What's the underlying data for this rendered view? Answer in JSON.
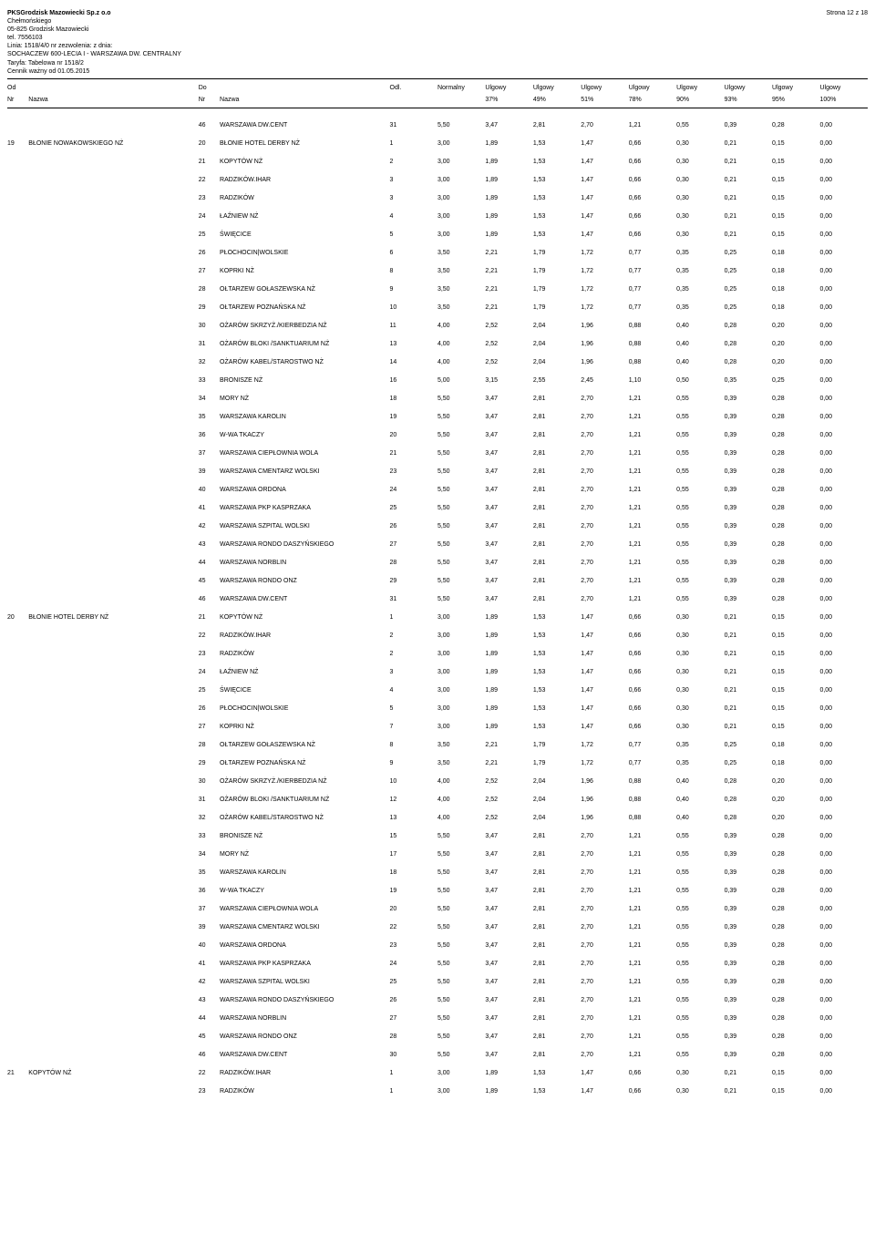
{
  "page_info": {
    "company": "PKSGrodzisk Mazowiecki Sp.z o.o",
    "addr1": "Chełmońskiego",
    "addr2": "05-825 Grodzisk Mazowiecki",
    "tel": "tel. 7556103",
    "linia": "Linia: 1518/4/0 nr zezwolenia:  z dnia:",
    "route": "SOCHACZEW 600-LECIA I - WARSZAWA DW. CENTRALNY",
    "taryfa": "Taryfa: Tabelowa nr 1518/2",
    "cennik": "Cennik ważny od 01.05.2015",
    "page_no": "Strona 12 z 18"
  },
  "headers": {
    "od": "Od",
    "do": "Do",
    "odl": "Odl.",
    "norm": "Normalny",
    "ulg": "Ulgowy",
    "nr": "Nr",
    "nazwa": "Nazwa",
    "pcts": [
      "37%",
      "49%",
      "51%",
      "78%",
      "90%",
      "93%",
      "95%",
      "100%"
    ]
  },
  "price_rows": {
    "p300": [
      "3,00",
      "1,89",
      "1,53",
      "1,47",
      "0,66",
      "0,30",
      "0,21",
      "0,15",
      "0,00"
    ],
    "p350": [
      "3,50",
      "2,21",
      "1,79",
      "1,72",
      "0,77",
      "0,35",
      "0,25",
      "0,18",
      "0,00"
    ],
    "p400": [
      "4,00",
      "2,52",
      "2,04",
      "1,96",
      "0,88",
      "0,40",
      "0,28",
      "0,20",
      "0,00"
    ],
    "p500": [
      "5,00",
      "3,15",
      "2,55",
      "2,45",
      "1,10",
      "0,50",
      "0,35",
      "0,25",
      "0,00"
    ],
    "p550": [
      "5,50",
      "3,47",
      "2,81",
      "2,70",
      "1,21",
      "0,55",
      "0,39",
      "0,28",
      "0,00"
    ]
  },
  "rows": [
    {
      "od_nr": "",
      "od_name": "",
      "do_nr": "46",
      "do_name": "WARSZAWA DW.CENT",
      "odl": "31",
      "p": "p550"
    },
    {
      "od_nr": "19",
      "od_name": "BŁONIE NOWAKOWSKIEGO  NŻ",
      "do_nr": "20",
      "do_name": "BŁONIE HOTEL DERBY  NŻ",
      "odl": "1",
      "p": "p300"
    },
    {
      "od_nr": "",
      "od_name": "",
      "do_nr": "21",
      "do_name": "KOPYTÓW  NŻ",
      "odl": "2",
      "p": "p300"
    },
    {
      "od_nr": "",
      "od_name": "",
      "do_nr": "22",
      "do_name": "RADZIKÓW.IHAR",
      "odl": "3",
      "p": "p300"
    },
    {
      "od_nr": "",
      "od_name": "",
      "do_nr": "23",
      "do_name": "RADZIKÓW",
      "odl": "3",
      "p": "p300"
    },
    {
      "od_nr": "",
      "od_name": "",
      "do_nr": "24",
      "do_name": "ŁAŹNIEW NŻ",
      "odl": "4",
      "p": "p300"
    },
    {
      "od_nr": "",
      "od_name": "",
      "do_nr": "25",
      "do_name": "ŚWIĘCICE",
      "odl": "5",
      "p": "p300"
    },
    {
      "od_nr": "",
      "od_name": "",
      "do_nr": "26",
      "do_name": "PŁOCHOCIN|WOLSKIE",
      "odl": "6",
      "p": "p350"
    },
    {
      "od_nr": "",
      "od_name": "",
      "do_nr": "27",
      "do_name": "KOPRKI NŻ",
      "odl": "8",
      "p": "p350"
    },
    {
      "od_nr": "",
      "od_name": "",
      "do_nr": "28",
      "do_name": "OŁTARZEW GOŁASZEWSKA NŻ",
      "odl": "9",
      "p": "p350"
    },
    {
      "od_nr": "",
      "od_name": "",
      "do_nr": "29",
      "do_name": "OŁTARZEW POZNAŃSKA  NŻ",
      "odl": "10",
      "p": "p350"
    },
    {
      "od_nr": "",
      "od_name": "",
      "do_nr": "30",
      "do_name": "OŻARÓW SKRZYŻ./KIERBEDZIA  NŻ",
      "odl": "11",
      "p": "p400"
    },
    {
      "od_nr": "",
      "od_name": "",
      "do_nr": "31",
      "do_name": "OŻARÓW BLOKI /SANKTUARIUM NŻ",
      "odl": "13",
      "p": "p400"
    },
    {
      "od_nr": "",
      "od_name": "",
      "do_nr": "32",
      "do_name": "OŻARÓW KABEL/STAROSTWO  NŻ",
      "odl": "14",
      "p": "p400"
    },
    {
      "od_nr": "",
      "od_name": "",
      "do_nr": "33",
      "do_name": "BRONISZE  NŻ",
      "odl": "16",
      "p": "p500"
    },
    {
      "od_nr": "",
      "od_name": "",
      "do_nr": "34",
      "do_name": "MORY  NŻ",
      "odl": "18",
      "p": "p550"
    },
    {
      "od_nr": "",
      "od_name": "",
      "do_nr": "35",
      "do_name": "WARSZAWA KAROLIN",
      "odl": "19",
      "p": "p550"
    },
    {
      "od_nr": "",
      "od_name": "",
      "do_nr": "36",
      "do_name": "W-WA TKACZY",
      "odl": "20",
      "p": "p550"
    },
    {
      "od_nr": "",
      "od_name": "",
      "do_nr": "37",
      "do_name": "WARSZAWA CIEPŁOWNIA WOLA",
      "odl": "21",
      "p": "p550"
    },
    {
      "od_nr": "",
      "od_name": "",
      "do_nr": "39",
      "do_name": "WARSZAWA CMENTARZ WOLSKI",
      "odl": "23",
      "p": "p550"
    },
    {
      "od_nr": "",
      "od_name": "",
      "do_nr": "40",
      "do_name": "WARSZAWA ORDONA",
      "odl": "24",
      "p": "p550"
    },
    {
      "od_nr": "",
      "od_name": "",
      "do_nr": "41",
      "do_name": "WARSZAWA PKP KASPRZAKA",
      "odl": "25",
      "p": "p550"
    },
    {
      "od_nr": "",
      "od_name": "",
      "do_nr": "42",
      "do_name": "WARSZAWA SZPITAL WOLSKI",
      "odl": "26",
      "p": "p550"
    },
    {
      "od_nr": "",
      "od_name": "",
      "do_nr": "43",
      "do_name": "WARSZAWA RONDO DASZYŃSKIEGO",
      "odl": "27",
      "p": "p550"
    },
    {
      "od_nr": "",
      "od_name": "",
      "do_nr": "44",
      "do_name": "WARSZAWA NORBLIN",
      "odl": "28",
      "p": "p550"
    },
    {
      "od_nr": "",
      "od_name": "",
      "do_nr": "45",
      "do_name": "WARSZAWA RONDO ONZ",
      "odl": "29",
      "p": "p550"
    },
    {
      "od_nr": "",
      "od_name": "",
      "do_nr": "46",
      "do_name": "WARSZAWA DW.CENT",
      "odl": "31",
      "p": "p550"
    },
    {
      "od_nr": "20",
      "od_name": "BŁONIE HOTEL DERBY  NŻ",
      "do_nr": "21",
      "do_name": "KOPYTÓW  NŻ",
      "odl": "1",
      "p": "p300"
    },
    {
      "od_nr": "",
      "od_name": "",
      "do_nr": "22",
      "do_name": "RADZIKÓW.IHAR",
      "odl": "2",
      "p": "p300"
    },
    {
      "od_nr": "",
      "od_name": "",
      "do_nr": "23",
      "do_name": "RADZIKÓW",
      "odl": "2",
      "p": "p300"
    },
    {
      "od_nr": "",
      "od_name": "",
      "do_nr": "24",
      "do_name": "ŁAŹNIEW NŻ",
      "odl": "3",
      "p": "p300"
    },
    {
      "od_nr": "",
      "od_name": "",
      "do_nr": "25",
      "do_name": "ŚWIĘCICE",
      "odl": "4",
      "p": "p300"
    },
    {
      "od_nr": "",
      "od_name": "",
      "do_nr": "26",
      "do_name": "PŁOCHOCIN|WOLSKIE",
      "odl": "5",
      "p": "p300"
    },
    {
      "od_nr": "",
      "od_name": "",
      "do_nr": "27",
      "do_name": "KOPRKI NŻ",
      "odl": "7",
      "p": "p300"
    },
    {
      "od_nr": "",
      "od_name": "",
      "do_nr": "28",
      "do_name": "OŁTARZEW GOŁASZEWSKA NŻ",
      "odl": "8",
      "p": "p350"
    },
    {
      "od_nr": "",
      "od_name": "",
      "do_nr": "29",
      "do_name": "OŁTARZEW POZNAŃSKA  NŻ",
      "odl": "9",
      "p": "p350"
    },
    {
      "od_nr": "",
      "od_name": "",
      "do_nr": "30",
      "do_name": "OŻARÓW SKRZYŻ./KIERBEDZIA  NŻ",
      "odl": "10",
      "p": "p400"
    },
    {
      "od_nr": "",
      "od_name": "",
      "do_nr": "31",
      "do_name": "OŻARÓW BLOKI /SANKTUARIUM NŻ",
      "odl": "12",
      "p": "p400"
    },
    {
      "od_nr": "",
      "od_name": "",
      "do_nr": "32",
      "do_name": "OŻARÓW KABEL/STAROSTWO  NŻ",
      "odl": "13",
      "p": "p400"
    },
    {
      "od_nr": "",
      "od_name": "",
      "do_nr": "33",
      "do_name": "BRONISZE  NŻ",
      "odl": "15",
      "p": "p550"
    },
    {
      "od_nr": "",
      "od_name": "",
      "do_nr": "34",
      "do_name": "MORY  NŻ",
      "odl": "17",
      "p": "p550"
    },
    {
      "od_nr": "",
      "od_name": "",
      "do_nr": "35",
      "do_name": "WARSZAWA KAROLIN",
      "odl": "18",
      "p": "p550"
    },
    {
      "od_nr": "",
      "od_name": "",
      "do_nr": "36",
      "do_name": "W-WA TKACZY",
      "odl": "19",
      "p": "p550"
    },
    {
      "od_nr": "",
      "od_name": "",
      "do_nr": "37",
      "do_name": "WARSZAWA CIEPŁOWNIA WOLA",
      "odl": "20",
      "p": "p550"
    },
    {
      "od_nr": "",
      "od_name": "",
      "do_nr": "39",
      "do_name": "WARSZAWA CMENTARZ WOLSKI",
      "odl": "22",
      "p": "p550"
    },
    {
      "od_nr": "",
      "od_name": "",
      "do_nr": "40",
      "do_name": "WARSZAWA ORDONA",
      "odl": "23",
      "p": "p550"
    },
    {
      "od_nr": "",
      "od_name": "",
      "do_nr": "41",
      "do_name": "WARSZAWA PKP KASPRZAKA",
      "odl": "24",
      "p": "p550"
    },
    {
      "od_nr": "",
      "od_name": "",
      "do_nr": "42",
      "do_name": "WARSZAWA SZPITAL WOLSKI",
      "odl": "25",
      "p": "p550"
    },
    {
      "od_nr": "",
      "od_name": "",
      "do_nr": "43",
      "do_name": "WARSZAWA RONDO DASZYŃSKIEGO",
      "odl": "26",
      "p": "p550"
    },
    {
      "od_nr": "",
      "od_name": "",
      "do_nr": "44",
      "do_name": "WARSZAWA NORBLIN",
      "odl": "27",
      "p": "p550"
    },
    {
      "od_nr": "",
      "od_name": "",
      "do_nr": "45",
      "do_name": "WARSZAWA RONDO ONZ",
      "odl": "28",
      "p": "p550"
    },
    {
      "od_nr": "",
      "od_name": "",
      "do_nr": "46",
      "do_name": "WARSZAWA DW.CENT",
      "odl": "30",
      "p": "p550"
    },
    {
      "od_nr": "21",
      "od_name": "KOPYTÓW  NŻ",
      "do_nr": "22",
      "do_name": "RADZIKÓW.IHAR",
      "odl": "1",
      "p": "p300"
    },
    {
      "od_nr": "",
      "od_name": "",
      "do_nr": "23",
      "do_name": "RADZIKÓW",
      "odl": "1",
      "p": "p300"
    }
  ]
}
